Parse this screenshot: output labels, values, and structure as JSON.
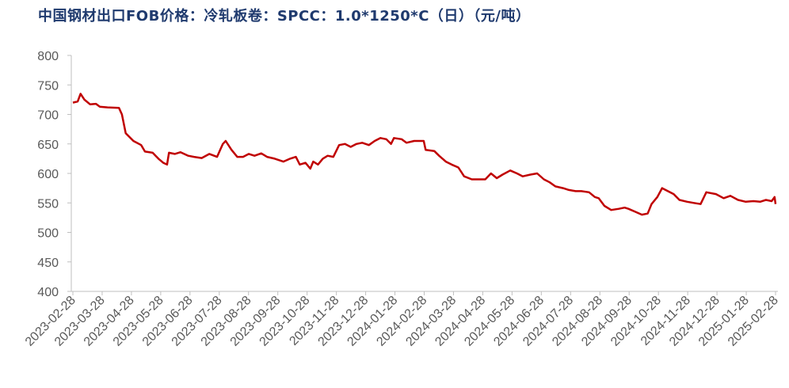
{
  "chart_data": {
    "type": "line",
    "title": "中国钢材出口FOB价格：冷轧板卷：SPCC：1.0*1250*C（日）（元/吨）",
    "ylim": [
      400,
      800
    ],
    "yticks": [
      400,
      450,
      500,
      550,
      600,
      650,
      700,
      750,
      800
    ],
    "categories": [
      "2023-02-28",
      "2023-03-28",
      "2023-04-28",
      "2023-05-28",
      "2023-06-28",
      "2023-07-28",
      "2023-08-28",
      "2023-09-28",
      "2023-10-28",
      "2023-11-28",
      "2023-12-28",
      "2024-01-28",
      "2024-02-28",
      "2024-03-28",
      "2024-04-28",
      "2024-05-28",
      "2024-06-28",
      "2024-07-28",
      "2024-08-28",
      "2024-09-28",
      "2024-10-28",
      "2024-11-28",
      "2024-12-28",
      "2025-01-28",
      "2025-02-28"
    ],
    "grid": false,
    "series": [
      {
        "color": "#c00000",
        "points": [
          [
            "2023-02-28",
            720
          ],
          [
            "2023-03-05",
            722
          ],
          [
            "2023-03-08",
            735
          ],
          [
            "2023-03-12",
            725
          ],
          [
            "2023-03-18",
            717
          ],
          [
            "2023-03-24",
            718
          ],
          [
            "2023-03-28",
            713
          ],
          [
            "2023-04-05",
            712
          ],
          [
            "2023-04-17",
            711
          ],
          [
            "2023-04-20",
            700
          ],
          [
            "2023-04-24",
            668
          ],
          [
            "2023-05-02",
            655
          ],
          [
            "2023-05-10",
            648
          ],
          [
            "2023-05-14",
            637
          ],
          [
            "2023-05-22",
            635
          ],
          [
            "2023-05-28",
            625
          ],
          [
            "2023-06-02",
            618
          ],
          [
            "2023-06-06",
            615
          ],
          [
            "2023-06-08",
            635
          ],
          [
            "2023-06-14",
            633
          ],
          [
            "2023-06-20",
            636
          ],
          [
            "2023-06-28",
            630
          ],
          [
            "2023-07-04",
            628
          ],
          [
            "2023-07-12",
            626
          ],
          [
            "2023-07-20",
            633
          ],
          [
            "2023-07-28",
            628
          ],
          [
            "2023-08-03",
            650
          ],
          [
            "2023-08-06",
            655
          ],
          [
            "2023-08-12",
            640
          ],
          [
            "2023-08-18",
            628
          ],
          [
            "2023-08-24",
            628
          ],
          [
            "2023-08-30",
            633
          ],
          [
            "2023-09-05",
            630
          ],
          [
            "2023-09-12",
            634
          ],
          [
            "2023-09-18",
            628
          ],
          [
            "2023-09-26",
            625
          ],
          [
            "2023-10-05",
            620
          ],
          [
            "2023-10-12",
            625
          ],
          [
            "2023-10-18",
            628
          ],
          [
            "2023-10-22",
            615
          ],
          [
            "2023-10-28",
            618
          ],
          [
            "2023-11-02",
            608
          ],
          [
            "2023-11-05",
            620
          ],
          [
            "2023-11-10",
            615
          ],
          [
            "2023-11-15",
            625
          ],
          [
            "2023-11-20",
            630
          ],
          [
            "2023-11-26",
            628
          ],
          [
            "2023-12-02",
            648
          ],
          [
            "2023-12-08",
            650
          ],
          [
            "2023-12-14",
            645
          ],
          [
            "2023-12-20",
            650
          ],
          [
            "2023-12-26",
            652
          ],
          [
            "2024-01-02",
            648
          ],
          [
            "2024-01-08",
            655
          ],
          [
            "2024-01-14",
            660
          ],
          [
            "2024-01-20",
            658
          ],
          [
            "2024-01-25",
            650
          ],
          [
            "2024-01-28",
            660
          ],
          [
            "2024-02-05",
            658
          ],
          [
            "2024-02-10",
            652
          ],
          [
            "2024-02-18",
            655
          ],
          [
            "2024-02-28",
            655
          ],
          [
            "2024-03-01",
            640
          ],
          [
            "2024-03-10",
            638
          ],
          [
            "2024-03-15",
            630
          ],
          [
            "2024-03-22",
            620
          ],
          [
            "2024-03-28",
            615
          ],
          [
            "2024-04-04",
            610
          ],
          [
            "2024-04-10",
            595
          ],
          [
            "2024-04-18",
            590
          ],
          [
            "2024-04-25",
            590
          ],
          [
            "2024-05-02",
            590
          ],
          [
            "2024-05-08",
            600
          ],
          [
            "2024-05-14",
            592
          ],
          [
            "2024-05-20",
            598
          ],
          [
            "2024-05-28",
            605
          ],
          [
            "2024-06-04",
            600
          ],
          [
            "2024-06-10",
            595
          ],
          [
            "2024-06-18",
            598
          ],
          [
            "2024-06-25",
            600
          ],
          [
            "2024-07-02",
            590
          ],
          [
            "2024-07-08",
            585
          ],
          [
            "2024-07-14",
            578
          ],
          [
            "2024-07-22",
            575
          ],
          [
            "2024-07-28",
            572
          ],
          [
            "2024-08-04",
            570
          ],
          [
            "2024-08-10",
            570
          ],
          [
            "2024-08-18",
            568
          ],
          [
            "2024-08-24",
            560
          ],
          [
            "2024-08-28",
            558
          ],
          [
            "2024-09-03",
            545
          ],
          [
            "2024-09-10",
            538
          ],
          [
            "2024-09-18",
            540
          ],
          [
            "2024-09-24",
            542
          ],
          [
            "2024-09-28",
            540
          ],
          [
            "2024-10-05",
            535
          ],
          [
            "2024-10-12",
            530
          ],
          [
            "2024-10-18",
            532
          ],
          [
            "2024-10-22",
            548
          ],
          [
            "2024-10-28",
            560
          ],
          [
            "2024-11-02",
            575
          ],
          [
            "2024-11-08",
            570
          ],
          [
            "2024-11-14",
            565
          ],
          [
            "2024-11-20",
            555
          ],
          [
            "2024-11-28",
            552
          ],
          [
            "2024-12-05",
            550
          ],
          [
            "2024-12-12",
            548
          ],
          [
            "2024-12-18",
            568
          ],
          [
            "2024-12-28",
            565
          ],
          [
            "2025-01-05",
            558
          ],
          [
            "2025-01-12",
            562
          ],
          [
            "2025-01-20",
            555
          ],
          [
            "2025-01-28",
            552
          ],
          [
            "2025-02-05",
            553
          ],
          [
            "2025-02-12",
            552
          ],
          [
            "2025-02-18",
            555
          ],
          [
            "2025-02-24",
            553
          ],
          [
            "2025-02-27",
            560
          ],
          [
            "2025-02-28",
            548
          ]
        ]
      }
    ]
  }
}
